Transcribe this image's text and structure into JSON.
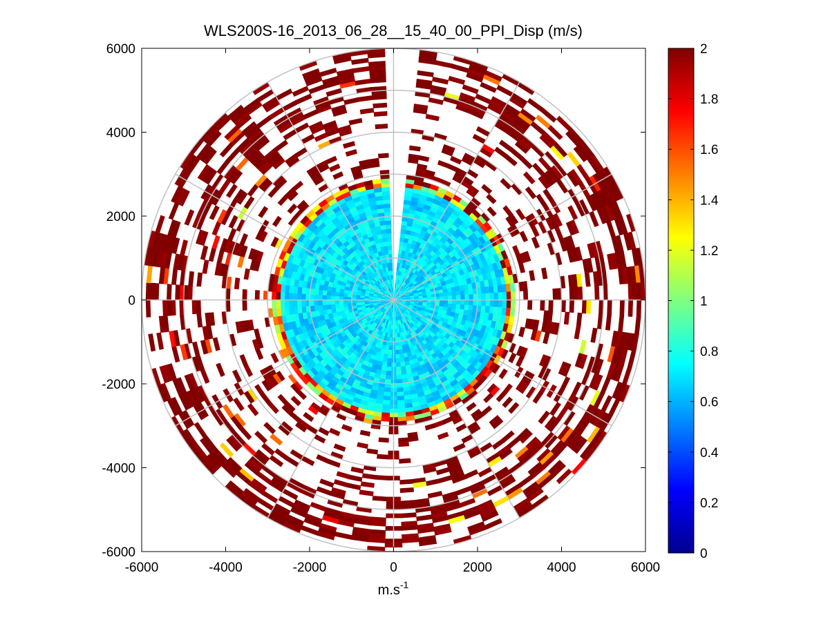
{
  "chart_data": {
    "type": "heatmap",
    "subtype": "polar-ppi",
    "title": "WLS200S-16_2013_06_28__15_40_00_PPI_Disp (m/s)",
    "xlabel": "m.s",
    "xlabel_superscript": "-1",
    "ylabel": "",
    "xlim": [
      -6000,
      6000
    ],
    "ylim": [
      -6000,
      6000
    ],
    "xticks": [
      "-6000",
      "-4000",
      "-2000",
      "0",
      "2000",
      "4000",
      "6000"
    ],
    "xtick_values": [
      -6000,
      -4000,
      -2000,
      0,
      2000,
      4000,
      6000
    ],
    "yticks": [
      "6000",
      "4000",
      "2000",
      "0",
      "-2000",
      "-4000",
      "-6000"
    ],
    "ytick_values": [
      6000,
      4000,
      2000,
      0,
      -2000,
      -4000,
      -6000
    ],
    "grid": "polar",
    "grid_radii": [
      1000,
      2000,
      3000,
      4000,
      5000,
      6000
    ],
    "grid_spoke_step_deg": 30,
    "colormap": "jet",
    "clim": [
      0,
      2
    ],
    "colorbar_ticks": [
      "2",
      "1.8",
      "1.6",
      "1.4",
      "1.2",
      "1",
      "0.8",
      "0.6",
      "0.4",
      "0.2",
      "0"
    ],
    "colorbar_tick_values": [
      2,
      1.8,
      1.6,
      1.4,
      1.2,
      1,
      0.8,
      0.6,
      0.4,
      0.2,
      0
    ],
    "max_range": 6000,
    "range_gate_step": 100,
    "azimuth_step_deg": 4,
    "regions": [
      {
        "name": "inner-disk",
        "range_min": 0,
        "range_max": 2700,
        "value_typical": 0.7,
        "value_spread": 0.12,
        "coverage": 1.0
      },
      {
        "name": "inner-edge",
        "range_min": 2700,
        "range_max": 2900,
        "value_typical": 1.5,
        "value_spread": 0.6,
        "coverage": 1.0
      },
      {
        "name": "middle-band",
        "range_min": 2900,
        "range_max": 4800,
        "value_typical": 2.0,
        "value_spread": 0.05,
        "coverage": 0.3
      },
      {
        "name": "outer-band",
        "range_min": 4800,
        "range_max": 6000,
        "value_typical": 2.0,
        "value_spread": 0.05,
        "coverage": 0.55
      }
    ],
    "missing_sector_deg": [
      -4,
      4
    ]
  }
}
